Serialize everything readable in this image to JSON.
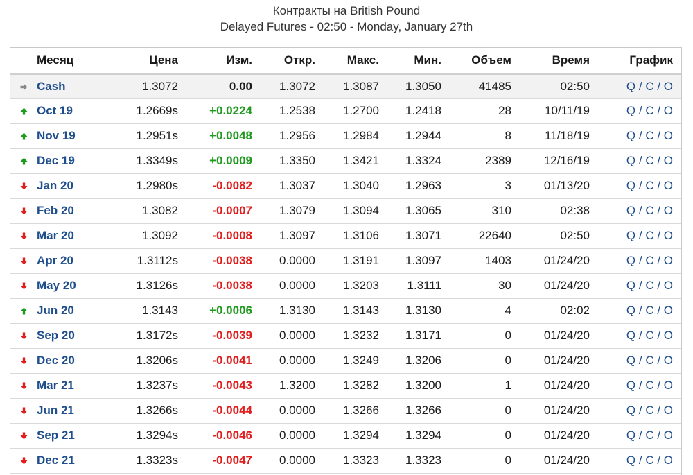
{
  "header": {
    "title": "Контракты на British Pound",
    "subtitle": "Delayed Futures - 02:50 - Monday, January 27th"
  },
  "table": {
    "columns": {
      "month": "Месяц",
      "price": "Цена",
      "change": "Изм.",
      "open": "Откр.",
      "high": "Макс.",
      "low": "Мин.",
      "volume": "Объем",
      "time": "Время",
      "chart": "График"
    },
    "chart_links": {
      "q": "Q",
      "c": "C",
      "o": "O",
      "sep": " / "
    },
    "rows": [
      {
        "direction": "flat",
        "month": "Cash",
        "price": "1.3072",
        "change": "0.00",
        "open": "1.3072",
        "high": "1.3087",
        "low": "1.3050",
        "volume": "41485",
        "time": "02:50"
      },
      {
        "direction": "up",
        "month": "Oct 19",
        "price": "1.2669s",
        "change": "+0.0224",
        "open": "1.2538",
        "high": "1.2700",
        "low": "1.2418",
        "volume": "28",
        "time": "10/11/19"
      },
      {
        "direction": "up",
        "month": "Nov 19",
        "price": "1.2951s",
        "change": "+0.0048",
        "open": "1.2956",
        "high": "1.2984",
        "low": "1.2944",
        "volume": "8",
        "time": "11/18/19"
      },
      {
        "direction": "up",
        "month": "Dec 19",
        "price": "1.3349s",
        "change": "+0.0009",
        "open": "1.3350",
        "high": "1.3421",
        "low": "1.3324",
        "volume": "2389",
        "time": "12/16/19"
      },
      {
        "direction": "down",
        "month": "Jan 20",
        "price": "1.2980s",
        "change": "-0.0082",
        "open": "1.3037",
        "high": "1.3040",
        "low": "1.2963",
        "volume": "3",
        "time": "01/13/20"
      },
      {
        "direction": "down",
        "month": "Feb 20",
        "price": "1.3082",
        "change": "-0.0007",
        "open": "1.3079",
        "high": "1.3094",
        "low": "1.3065",
        "volume": "310",
        "time": "02:38"
      },
      {
        "direction": "down",
        "month": "Mar 20",
        "price": "1.3092",
        "change": "-0.0008",
        "open": "1.3097",
        "high": "1.3106",
        "low": "1.3071",
        "volume": "22640",
        "time": "02:50"
      },
      {
        "direction": "down",
        "month": "Apr 20",
        "price": "1.3112s",
        "change": "-0.0038",
        "open": "0.0000",
        "high": "1.3191",
        "low": "1.3097",
        "volume": "1403",
        "time": "01/24/20"
      },
      {
        "direction": "down",
        "month": "May 20",
        "price": "1.3126s",
        "change": "-0.0038",
        "open": "0.0000",
        "high": "1.3203",
        "low": "1.3111",
        "volume": "30",
        "time": "01/24/20"
      },
      {
        "direction": "up",
        "month": "Jun 20",
        "price": "1.3143",
        "change": "+0.0006",
        "open": "1.3130",
        "high": "1.3143",
        "low": "1.3130",
        "volume": "4",
        "time": "02:02"
      },
      {
        "direction": "down",
        "month": "Sep 20",
        "price": "1.3172s",
        "change": "-0.0039",
        "open": "0.0000",
        "high": "1.3232",
        "low": "1.3171",
        "volume": "0",
        "time": "01/24/20"
      },
      {
        "direction": "down",
        "month": "Dec 20",
        "price": "1.3206s",
        "change": "-0.0041",
        "open": "0.0000",
        "high": "1.3249",
        "low": "1.3206",
        "volume": "0",
        "time": "01/24/20"
      },
      {
        "direction": "down",
        "month": "Mar 21",
        "price": "1.3237s",
        "change": "-0.0043",
        "open": "1.3200",
        "high": "1.3282",
        "low": "1.3200",
        "volume": "1",
        "time": "01/24/20"
      },
      {
        "direction": "down",
        "month": "Jun 21",
        "price": "1.3266s",
        "change": "-0.0044",
        "open": "0.0000",
        "high": "1.3266",
        "low": "1.3266",
        "volume": "0",
        "time": "01/24/20"
      },
      {
        "direction": "down",
        "month": "Sep 21",
        "price": "1.3294s",
        "change": "-0.0046",
        "open": "0.0000",
        "high": "1.3294",
        "low": "1.3294",
        "volume": "0",
        "time": "01/24/20"
      },
      {
        "direction": "down",
        "month": "Dec 21",
        "price": "1.3323s",
        "change": "-0.0047",
        "open": "0.0000",
        "high": "1.3323",
        "low": "1.3323",
        "volume": "0",
        "time": "01/24/20"
      }
    ]
  },
  "colors": {
    "up": "#1f9a1f",
    "down": "#e01e1e",
    "flat": "#888888",
    "link": "#1f4e8c"
  },
  "icons": {
    "up": "arrow-up-icon",
    "down": "arrow-down-icon",
    "flat": "arrow-right-icon"
  }
}
